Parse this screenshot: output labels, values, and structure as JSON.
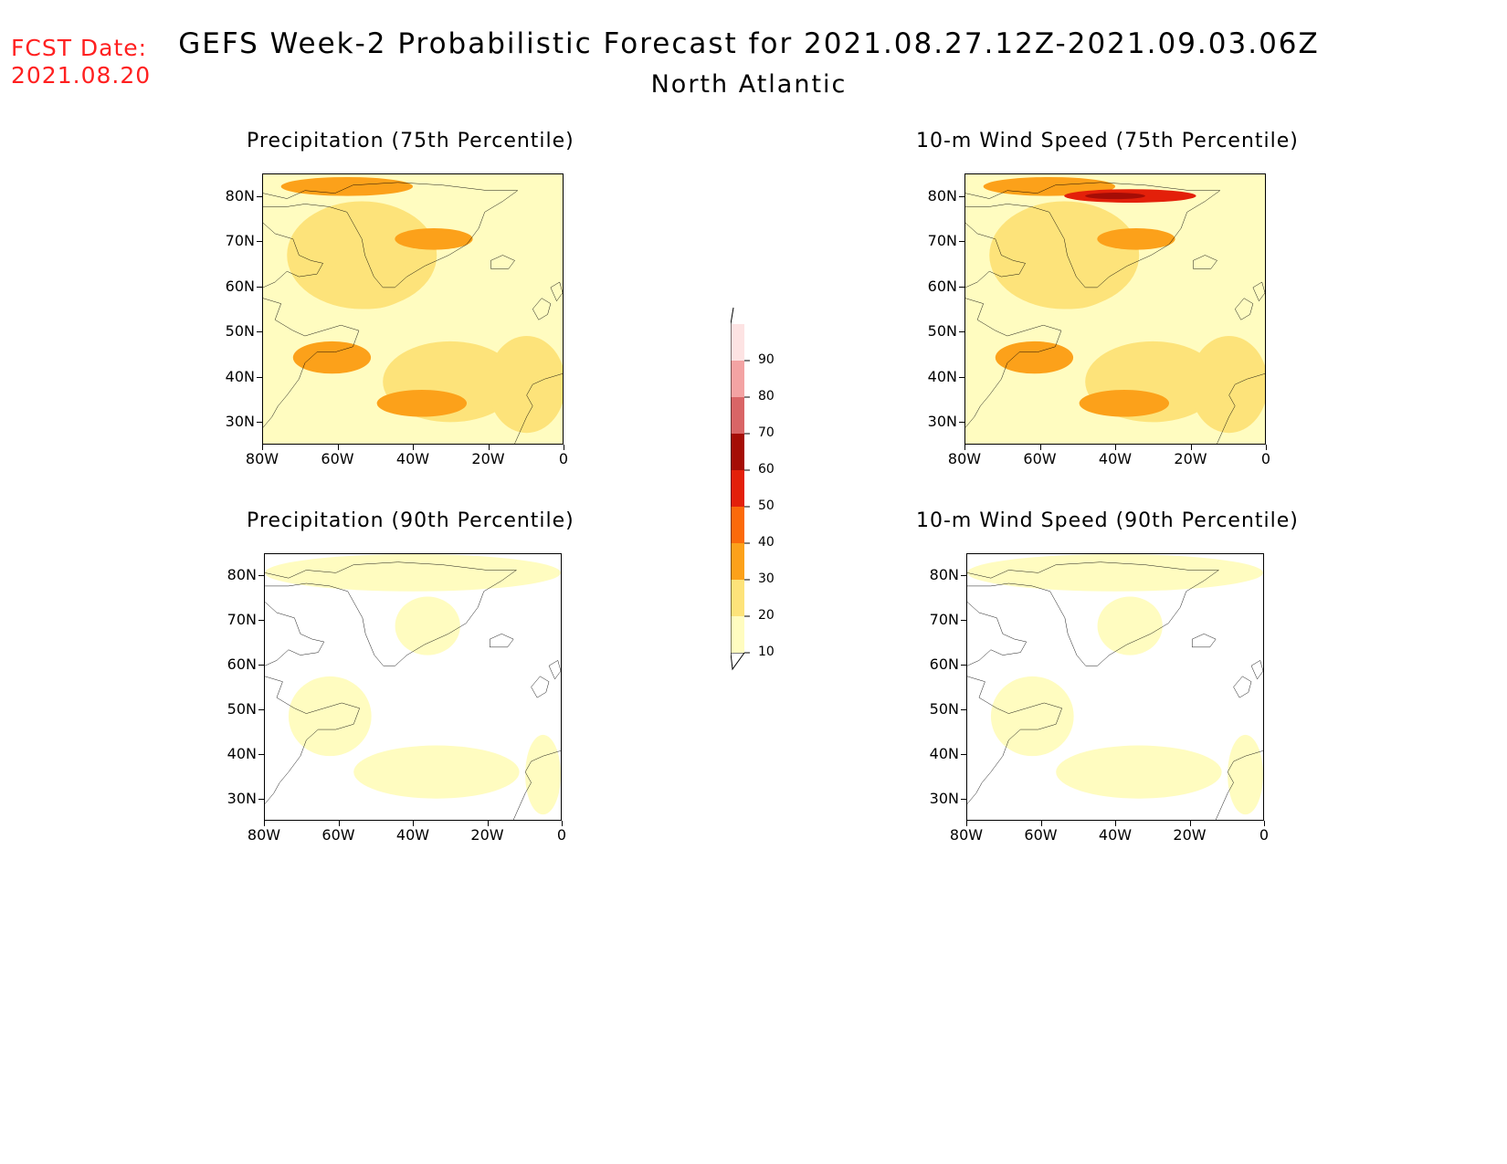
{
  "header": {
    "fcst_line1": "FCST Date:",
    "fcst_line2": "2021.08.20",
    "title": "GEFS Week-2 Probabilistic Forecast for 2021.08.27.12Z-2021.09.03.06Z",
    "subtitle": "North Atlantic"
  },
  "panels": [
    {
      "title": "Precipitation (75th Percentile)",
      "level": "high"
    },
    {
      "title": "10-m Wind Speed (75th Percentile)",
      "level": "high"
    },
    {
      "title": "Precipitation (90th Percentile)",
      "level": "low"
    },
    {
      "title": "10-m Wind Speed (90th Percentile)",
      "level": "low"
    }
  ],
  "axes": {
    "lat_labels": [
      "80N",
      "70N",
      "60N",
      "50N",
      "40N",
      "30N"
    ],
    "lon_labels": [
      "80W",
      "60W",
      "40W",
      "20W",
      "0"
    ]
  },
  "colorbar": {
    "levels": [
      "10",
      "20",
      "30",
      "40",
      "50",
      "60",
      "70",
      "80",
      "90"
    ],
    "colors": [
      "#fffcc0",
      "#fde37a",
      "#fca11a",
      "#fb6a0a",
      "#e3200a",
      "#a50d06",
      "#d96566",
      "#f3a3a3",
      "#fde3e3"
    ]
  }
}
